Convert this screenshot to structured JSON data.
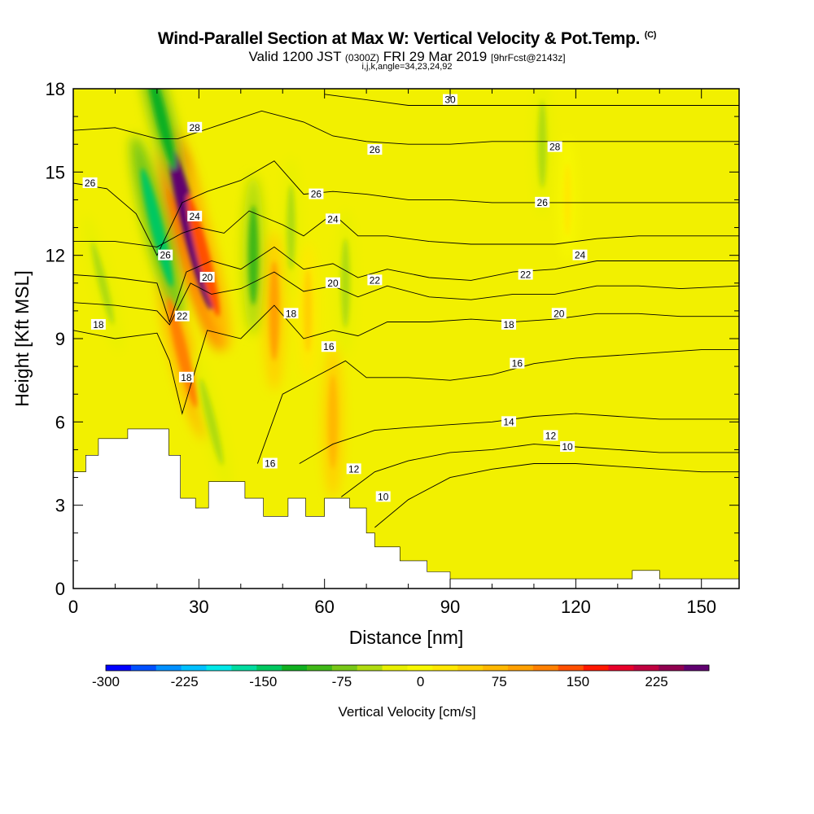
{
  "title": {
    "main": "Wind-Parallel Section at Max W: Vertical Velocity & Pot.Temp.",
    "unit_mark": "(C)",
    "valid_a": "Valid 1200 JST",
    "valid_utc": "(0300Z)",
    "valid_b": "FRI 29 Mar 2019",
    "fcst": "[9hrFcst@2143z]",
    "indices": "i,j,k,angle=34,23,24,92"
  },
  "chart_data": {
    "type": "heatmap",
    "xlabel": "Distance [nm]",
    "ylabel": "Height [Kft MSL]",
    "xlim": [
      0,
      159
    ],
    "ylim": [
      0,
      18
    ],
    "x_ticks": [
      0,
      30,
      60,
      90,
      120,
      150
    ],
    "y_ticks": [
      0,
      3,
      6,
      9,
      12,
      15,
      18
    ],
    "colorbar": {
      "label": "Vertical Velocity [cm/s]",
      "ticks": [
        -300,
        -225,
        -150,
        -75,
        0,
        75,
        150,
        225
      ],
      "range": [
        -300,
        275
      ],
      "colors": [
        "#0000ff",
        "#0050ff",
        "#0090ff",
        "#00c0ff",
        "#00e8e8",
        "#00dca0",
        "#00c860",
        "#10b020",
        "#40b818",
        "#78c818",
        "#b0dc10",
        "#e8f000",
        "#f8f800",
        "#ffe800",
        "#ffd000",
        "#ffb800",
        "#ffa000",
        "#ff8000",
        "#ff5000",
        "#ff1800",
        "#e8002a",
        "#c00040",
        "#900050",
        "#600070"
      ]
    },
    "terrain": {
      "x": [
        0,
        3,
        3,
        6,
        6,
        13,
        13,
        22.8,
        22.8,
        25.6,
        25.6,
        29.2,
        29.2,
        32.3,
        32.3,
        41,
        41,
        45.4,
        45.4,
        51.3,
        51.3,
        55.5,
        55.5,
        60,
        60,
        66,
        66,
        70,
        70,
        72,
        72,
        78,
        78,
        84.5,
        84.5,
        90,
        90,
        133.5,
        133.5,
        140,
        140,
        159
      ],
      "y": [
        4.2,
        4.2,
        4.8,
        4.8,
        5.4,
        5.4,
        5.75,
        5.75,
        4.8,
        4.8,
        3.25,
        3.25,
        2.9,
        2.9,
        3.85,
        3.85,
        3.25,
        3.25,
        2.6,
        2.6,
        3.25,
        3.25,
        2.6,
        2.6,
        3.25,
        3.25,
        2.9,
        2.9,
        2.0,
        2.0,
        1.5,
        1.5,
        1.0,
        1.0,
        0.6,
        0.6,
        0.35,
        0.35,
        0.65,
        0.65,
        0.35,
        0.35
      ]
    },
    "w_features": [
      {
        "x": 28,
        "y": 13,
        "w": 255,
        "note": "strong updraft core"
      },
      {
        "x": 31,
        "y": 12,
        "w": 150
      },
      {
        "x": 26,
        "y": 8.5,
        "w": 120
      },
      {
        "x": 20,
        "y": 13,
        "w": -140,
        "note": "downdraft"
      },
      {
        "x": 21,
        "y": 17,
        "w": -110
      },
      {
        "x": 33,
        "y": 6,
        "w": -60
      },
      {
        "x": 43,
        "y": 12,
        "w": -85
      },
      {
        "x": 48,
        "y": 10,
        "w": 85
      },
      {
        "x": 52,
        "y": 13,
        "w": -50
      },
      {
        "x": 56,
        "y": 10,
        "w": 45
      },
      {
        "x": 62,
        "y": 6,
        "w": 70
      },
      {
        "x": 65,
        "y": 11,
        "w": -60
      },
      {
        "x": 112,
        "y": 16,
        "w": -55
      },
      {
        "x": 118,
        "y": 14,
        "w": 20
      },
      {
        "x": 7,
        "y": 11,
        "w": -50
      }
    ],
    "isentropes": [
      {
        "value": 10,
        "x": [
          72,
          80,
          90,
          100,
          110,
          120,
          130,
          140,
          150,
          159
        ],
        "y": [
          2.2,
          3.2,
          4.0,
          4.3,
          4.5,
          4.5,
          4.4,
          4.3,
          4.2,
          4.2
        ]
      },
      {
        "value": 12,
        "x": [
          64,
          72,
          80,
          90,
          100,
          110,
          120,
          130,
          140,
          150,
          159
        ],
        "y": [
          3.3,
          4.2,
          4.6,
          4.9,
          5.0,
          5.2,
          5.1,
          5.0,
          4.9,
          4.9,
          4.9
        ]
      },
      {
        "value": 14,
        "x": [
          54,
          62,
          72,
          80,
          90,
          100,
          110,
          120,
          130,
          140,
          150,
          159
        ],
        "y": [
          4.5,
          5.2,
          5.7,
          5.8,
          5.9,
          6.0,
          6.2,
          6.3,
          6.2,
          6.1,
          6.1,
          6.1
        ]
      },
      {
        "value": 16,
        "x": [
          44,
          50,
          60,
          65,
          70,
          80,
          90,
          100,
          110,
          120,
          130,
          140,
          150,
          159
        ],
        "y": [
          4.5,
          7.0,
          7.8,
          8.2,
          7.6,
          7.6,
          7.5,
          7.7,
          8.1,
          8.3,
          8.4,
          8.5,
          8.6,
          8.6
        ]
      },
      {
        "value": 18,
        "x": [
          0,
          10,
          20,
          23,
          26,
          32,
          40,
          48,
          55,
          62,
          68,
          75,
          85,
          95,
          105,
          115,
          125,
          135,
          145,
          159
        ],
        "y": [
          9.3,
          9.0,
          9.2,
          8.2,
          6.3,
          9.3,
          9.0,
          10.2,
          9.0,
          9.3,
          9.1,
          9.6,
          9.6,
          9.7,
          9.6,
          9.7,
          9.9,
          9.9,
          9.8,
          9.8
        ]
      },
      {
        "value": 20,
        "x": [
          0,
          10,
          20,
          23,
          28,
          33,
          40,
          48,
          55,
          62,
          68,
          75,
          85,
          95,
          105,
          115,
          125,
          135,
          145,
          159
        ],
        "y": [
          10.3,
          10.2,
          10.0,
          9.5,
          11.0,
          10.6,
          10.8,
          11.4,
          10.7,
          10.9,
          10.5,
          10.9,
          10.5,
          10.4,
          10.6,
          10.6,
          10.9,
          10.9,
          10.8,
          10.9
        ]
      },
      {
        "value": 22,
        "x": [
          0,
          10,
          20,
          23,
          27,
          33,
          40,
          48,
          55,
          62,
          68,
          75,
          85,
          95,
          105,
          115,
          125,
          135,
          145,
          159
        ],
        "y": [
          11.3,
          11.2,
          11.0,
          9.6,
          11.4,
          11.8,
          11.5,
          12.3,
          11.5,
          11.7,
          11.2,
          11.5,
          11.2,
          11.1,
          11.4,
          11.5,
          11.8,
          11.8,
          11.8,
          11.8
        ]
      },
      {
        "value": 24,
        "x": [
          0,
          10,
          20,
          26,
          30,
          36,
          42,
          50,
          55,
          62,
          68,
          75,
          85,
          95,
          105,
          115,
          125,
          135,
          145,
          159
        ],
        "y": [
          12.5,
          12.5,
          12.3,
          12.8,
          13.0,
          12.8,
          13.6,
          13.1,
          12.7,
          13.5,
          12.7,
          12.7,
          12.5,
          12.4,
          12.4,
          12.4,
          12.6,
          12.7,
          12.7,
          12.7
        ]
      },
      {
        "value": 26,
        "x": [
          0,
          8,
          15,
          20,
          26,
          32,
          40,
          48,
          55,
          62,
          70,
          80,
          90,
          100,
          110,
          120,
          130,
          140,
          150,
          159
        ],
        "y": [
          14.6,
          14.4,
          13.5,
          12.0,
          13.9,
          14.3,
          14.7,
          15.4,
          14.2,
          14.3,
          14.2,
          14.0,
          14.0,
          13.9,
          13.9,
          13.9,
          13.9,
          13.9,
          13.9,
          13.9
        ]
      },
      {
        "value": 28,
        "x": [
          0,
          10,
          20,
          25,
          29,
          35,
          45,
          55,
          62,
          70,
          80,
          90,
          100,
          110,
          120,
          130,
          140,
          150,
          159
        ],
        "y": [
          16.5,
          16.6,
          16.2,
          16.2,
          16.4,
          16.7,
          17.2,
          16.8,
          16.3,
          16.1,
          16.0,
          16.0,
          16.1,
          16.1,
          16.1,
          16.1,
          16.1,
          16.1,
          16.1
        ]
      },
      {
        "value": 30,
        "x": [
          60,
          70,
          80,
          90,
          100,
          110,
          120,
          130,
          140,
          150,
          159
        ],
        "y": [
          17.8,
          17.6,
          17.4,
          17.4,
          17.4,
          17.4,
          17.4,
          17.4,
          17.4,
          17.4,
          17.4
        ]
      }
    ],
    "contour_labels": [
      {
        "text": "30",
        "x": 90,
        "y": 17.6
      },
      {
        "text": "28",
        "x": 29,
        "y": 16.6
      },
      {
        "text": "28",
        "x": 115,
        "y": 15.9
      },
      {
        "text": "26",
        "x": 72,
        "y": 15.8
      },
      {
        "text": "26",
        "x": 4,
        "y": 14.6
      },
      {
        "text": "26",
        "x": 58,
        "y": 14.2
      },
      {
        "text": "26",
        "x": 112,
        "y": 13.9
      },
      {
        "text": "24",
        "x": 29,
        "y": 13.4
      },
      {
        "text": "24",
        "x": 62,
        "y": 13.3
      },
      {
        "text": "24",
        "x": 121,
        "y": 12.0
      },
      {
        "text": "26",
        "x": 22,
        "y": 12.0
      },
      {
        "text": "20",
        "x": 32,
        "y": 11.2
      },
      {
        "text": "20",
        "x": 62,
        "y": 11.0
      },
      {
        "text": "22",
        "x": 72,
        "y": 11.1
      },
      {
        "text": "22",
        "x": 108,
        "y": 11.3
      },
      {
        "text": "22",
        "x": 26,
        "y": 9.8
      },
      {
        "text": "20",
        "x": 116,
        "y": 9.9
      },
      {
        "text": "18",
        "x": 52,
        "y": 9.9
      },
      {
        "text": "18",
        "x": 6,
        "y": 9.5
      },
      {
        "text": "18",
        "x": 104,
        "y": 9.5
      },
      {
        "text": "16",
        "x": 61,
        "y": 8.7
      },
      {
        "text": "16",
        "x": 106,
        "y": 8.1
      },
      {
        "text": "18",
        "x": 27,
        "y": 7.6
      },
      {
        "text": "14",
        "x": 104,
        "y": 6.0
      },
      {
        "text": "12",
        "x": 114,
        "y": 5.5
      },
      {
        "text": "10",
        "x": 118,
        "y": 5.1
      },
      {
        "text": "16",
        "x": 47,
        "y": 4.5
      },
      {
        "text": "12",
        "x": 67,
        "y": 4.3
      },
      {
        "text": "10",
        "x": 74,
        "y": 3.3
      }
    ]
  }
}
